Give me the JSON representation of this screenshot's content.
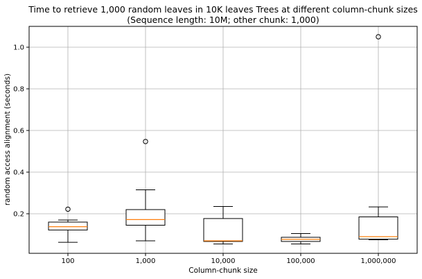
{
  "chart_data": {
    "type": "box",
    "title_lines": [
      "Time to retrieve 1,000 random leaves in 10K leaves Trees at different column-chunk sizes",
      "(Sequence length: 10M; other chunk: 1,000)"
    ],
    "xlabel": "Column-chunk size",
    "ylabel": "random access alignment (seconds)",
    "categories": [
      "100",
      "1,000",
      "10,000",
      "100,000",
      "1,000,000"
    ],
    "yticks": [
      0.2,
      0.4,
      0.6,
      0.8,
      1.0
    ],
    "ytick_labels": [
      "0.2",
      "0.4",
      "0.6",
      "0.8",
      "1.0"
    ],
    "ylim": [
      0.01,
      1.1
    ],
    "grid": true,
    "series": [
      {
        "category": "100",
        "whisker_low": 0.063,
        "q1": 0.122,
        "median": 0.138,
        "q3": 0.16,
        "whisker_high": 0.17,
        "outliers": [
          0.222
        ]
      },
      {
        "category": "1,000",
        "whisker_low": 0.07,
        "q1": 0.145,
        "median": 0.172,
        "q3": 0.22,
        "whisker_high": 0.315,
        "outliers": [
          0.547
        ]
      },
      {
        "category": "10,000",
        "whisker_low": 0.055,
        "q1": 0.067,
        "median": 0.07,
        "q3": 0.177,
        "whisker_high": 0.235,
        "outliers": []
      },
      {
        "category": "100,000",
        "whisker_low": 0.055,
        "q1": 0.067,
        "median": 0.077,
        "q3": 0.087,
        "whisker_high": 0.105,
        "outliers": []
      },
      {
        "category": "1,000,000",
        "whisker_low": 0.075,
        "q1": 0.078,
        "median": 0.09,
        "q3": 0.185,
        "whisker_high": 0.233,
        "outliers": [
          1.05
        ]
      }
    ],
    "colors": {
      "box": "#000000",
      "median": "#ff7f0e",
      "grid": "#b0b0b0",
      "axes": "#000000"
    }
  }
}
